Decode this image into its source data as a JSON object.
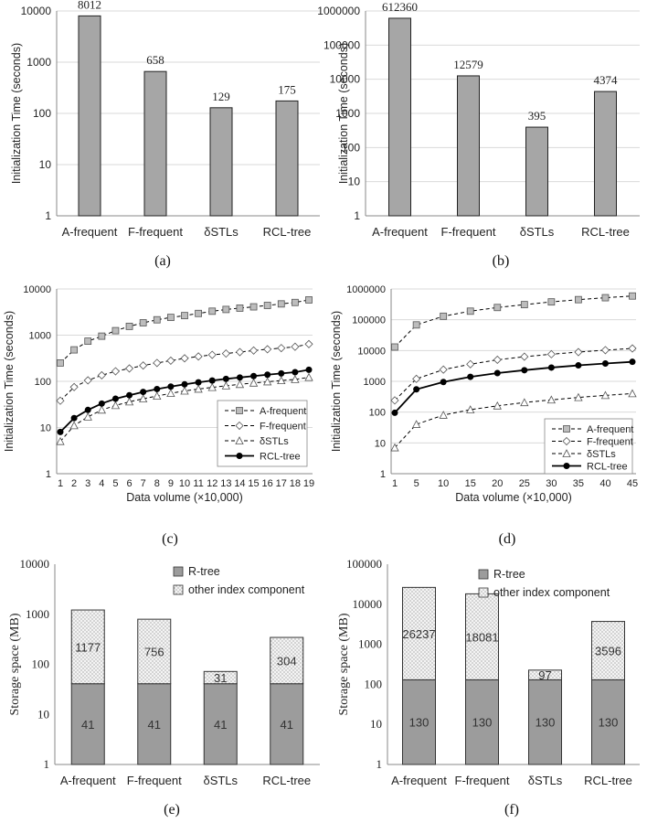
{
  "chart_data": [
    {
      "panel": "(a)",
      "type": "bar",
      "scale": "log",
      "ylabel": "Initialization Time (seconds)",
      "xlabel": "",
      "ylim": [
        1,
        10000
      ],
      "yticks": [
        "1",
        "10",
        "100",
        "1000",
        "10000"
      ],
      "categories": [
        "A-frequent",
        "F-frequent",
        "δSTLs",
        "RCL-tree"
      ],
      "values": [
        8012,
        658,
        129,
        175
      ],
      "labels": [
        "8012",
        "658",
        "129",
        "175"
      ]
    },
    {
      "panel": "(b)",
      "type": "bar",
      "scale": "log",
      "ylabel": "Initialization Time (seconds)",
      "xlabel": "",
      "ylim": [
        1,
        1000000
      ],
      "yticks": [
        "1",
        "10",
        "100",
        "1000",
        "10000",
        "100000",
        "1000000"
      ],
      "categories": [
        "A-frequent",
        "F-frequent",
        "δSTLs",
        "RCL-tree"
      ],
      "values": [
        612360,
        12579,
        395,
        4374
      ],
      "labels": [
        "612360",
        "12579",
        "395",
        "4374"
      ]
    },
    {
      "panel": "(c)",
      "type": "line",
      "scale": "log",
      "ylabel": "Initialization Time (seconds)",
      "xlabel": "Data volume (×10,000)",
      "ylim": [
        1,
        10000
      ],
      "yticks": [
        "1",
        "10",
        "100",
        "1000",
        "10000"
      ],
      "x": [
        1,
        2,
        3,
        4,
        5,
        6,
        7,
        8,
        9,
        10,
        11,
        12,
        13,
        14,
        15,
        16,
        17,
        18,
        19
      ],
      "xticks": [
        "1",
        "2",
        "3",
        "4",
        "5",
        "6",
        "7",
        "8",
        "9",
        "10",
        "11",
        "12",
        "13",
        "14",
        "15",
        "16",
        "17",
        "18",
        "19"
      ],
      "legend_position": "bottom-right",
      "series": [
        {
          "name": "A-frequent",
          "marker": "square",
          "dashed": true,
          "values": [
            250,
            480,
            740,
            950,
            1250,
            1550,
            1850,
            2150,
            2420,
            2650,
            2950,
            3300,
            3600,
            3850,
            4100,
            4400,
            4750,
            5100,
            5800
          ]
        },
        {
          "name": "F-frequent",
          "marker": "diamond",
          "dashed": true,
          "values": [
            38,
            75,
            105,
            135,
            165,
            190,
            220,
            250,
            280,
            315,
            345,
            375,
            400,
            430,
            465,
            495,
            525,
            560,
            640
          ]
        },
        {
          "name": "δSTLs",
          "marker": "triangle",
          "dashed": true,
          "values": [
            5,
            11,
            17,
            24,
            30,
            36,
            42,
            48,
            55,
            62,
            68,
            74,
            80,
            86,
            92,
            98,
            104,
            110,
            122
          ]
        },
        {
          "name": "RCL-tree",
          "marker": "circle",
          "dashed": false,
          "values": [
            8,
            16,
            24,
            33,
            42,
            50,
            59,
            68,
            77,
            86,
            95,
            104,
            113,
            121,
            130,
            139,
            148,
            158,
            178
          ]
        }
      ]
    },
    {
      "panel": "(d)",
      "type": "line",
      "scale": "log",
      "ylabel": "Initialization Time (seconds)",
      "xlabel": "Data volume (×10,000)",
      "ylim": [
        1,
        1000000
      ],
      "yticks": [
        "1",
        "10",
        "100",
        "1000",
        "10000",
        "100000",
        "1000000"
      ],
      "x": [
        1,
        5,
        10,
        15,
        20,
        25,
        30,
        35,
        40,
        45
      ],
      "xticks": [
        "1",
        "5",
        "10",
        "15",
        "20",
        "25",
        "30",
        "35",
        "40",
        "45"
      ],
      "legend_position": "bottom-right",
      "series": [
        {
          "name": "A-frequent",
          "marker": "square",
          "dashed": true,
          "values": [
            13000,
            68000,
            130000,
            190000,
            250000,
            310000,
            380000,
            450000,
            520000,
            590000
          ]
        },
        {
          "name": "F-frequent",
          "marker": "diamond",
          "dashed": true,
          "values": [
            240,
            1200,
            2400,
            3600,
            5000,
            6300,
            7600,
            8900,
            10300,
            11700
          ]
        },
        {
          "name": "δSTLs",
          "marker": "triangle",
          "dashed": true,
          "values": [
            7,
            40,
            80,
            120,
            160,
            205,
            250,
            300,
            350,
            400
          ]
        },
        {
          "name": "RCL-tree",
          "marker": "circle",
          "dashed": false,
          "values": [
            95,
            550,
            950,
            1400,
            1850,
            2300,
            2800,
            3300,
            3800,
            4300
          ]
        }
      ]
    },
    {
      "panel": "(e)",
      "type": "bar",
      "stacked": true,
      "scale": "log",
      "ylabel": "Storage space (MB)",
      "xlabel": "",
      "ylim": [
        1,
        10000
      ],
      "yticks": [
        "1",
        "10",
        "100",
        "1000",
        "10000"
      ],
      "categories": [
        "A-frequent",
        "F-frequent",
        "δSTLs",
        "RCL-tree"
      ],
      "legend_position": "top-right",
      "series": [
        {
          "name": "R-tree",
          "values": [
            41,
            41,
            41,
            41
          ],
          "labels": [
            "41",
            "41",
            "41",
            "41"
          ]
        },
        {
          "name": "other index component",
          "values": [
            1177,
            756,
            31,
            304
          ],
          "labels": [
            "1177",
            "756",
            "31",
            "304"
          ]
        }
      ]
    },
    {
      "panel": "(f)",
      "type": "bar",
      "stacked": true,
      "scale": "log",
      "ylabel": "Storage space (MB)",
      "xlabel": "",
      "ylim": [
        1,
        100000
      ],
      "yticks": [
        "1",
        "10",
        "100",
        "1000",
        "10000",
        "100000"
      ],
      "categories": [
        "A-frequent",
        "F-frequent",
        "δSTLs",
        "RCL-tree"
      ],
      "legend_position": "top-right",
      "series": [
        {
          "name": "R-tree",
          "values": [
            130,
            130,
            130,
            130
          ],
          "labels": [
            "130",
            "130",
            "130",
            "130"
          ]
        },
        {
          "name": "other index component",
          "values": [
            26237,
            18081,
            97,
            3596
          ],
          "labels": [
            "26237",
            "18081",
            "97",
            "3596"
          ]
        }
      ]
    }
  ],
  "colors": {
    "bar_fill": "#a6a6a6",
    "rtree_fill": "#9c9c9c",
    "dotted_fill": "#f4f4f4",
    "line": "#000000",
    "grid": "#d9d9d9",
    "axis": "#888888"
  }
}
